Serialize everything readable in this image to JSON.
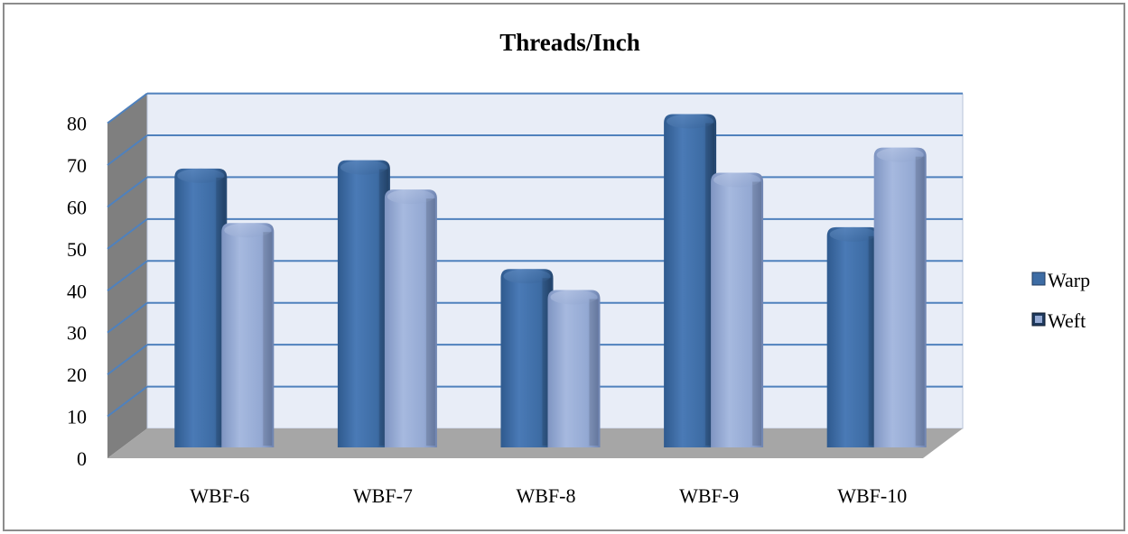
{
  "chart_data": {
    "type": "bar",
    "title": "Threads/Inch",
    "categories": [
      "WBF-6",
      "WBF-7",
      "WBF-8",
      "WBF-9",
      "WBF-10"
    ],
    "series": [
      {
        "name": "Warp",
        "values": [
          64,
          66,
          40,
          77,
          50
        ],
        "color": "#3d6ca4"
      },
      {
        "name": "Weft",
        "values": [
          51,
          59,
          35,
          63,
          69
        ],
        "color": "#94a9d3"
      }
    ],
    "ylim": [
      0,
      80
    ],
    "yticks": [
      0,
      10,
      20,
      30,
      40,
      50,
      60,
      70,
      80
    ],
    "grid": true,
    "legend_position": "right",
    "xlabel": "",
    "ylabel": ""
  }
}
